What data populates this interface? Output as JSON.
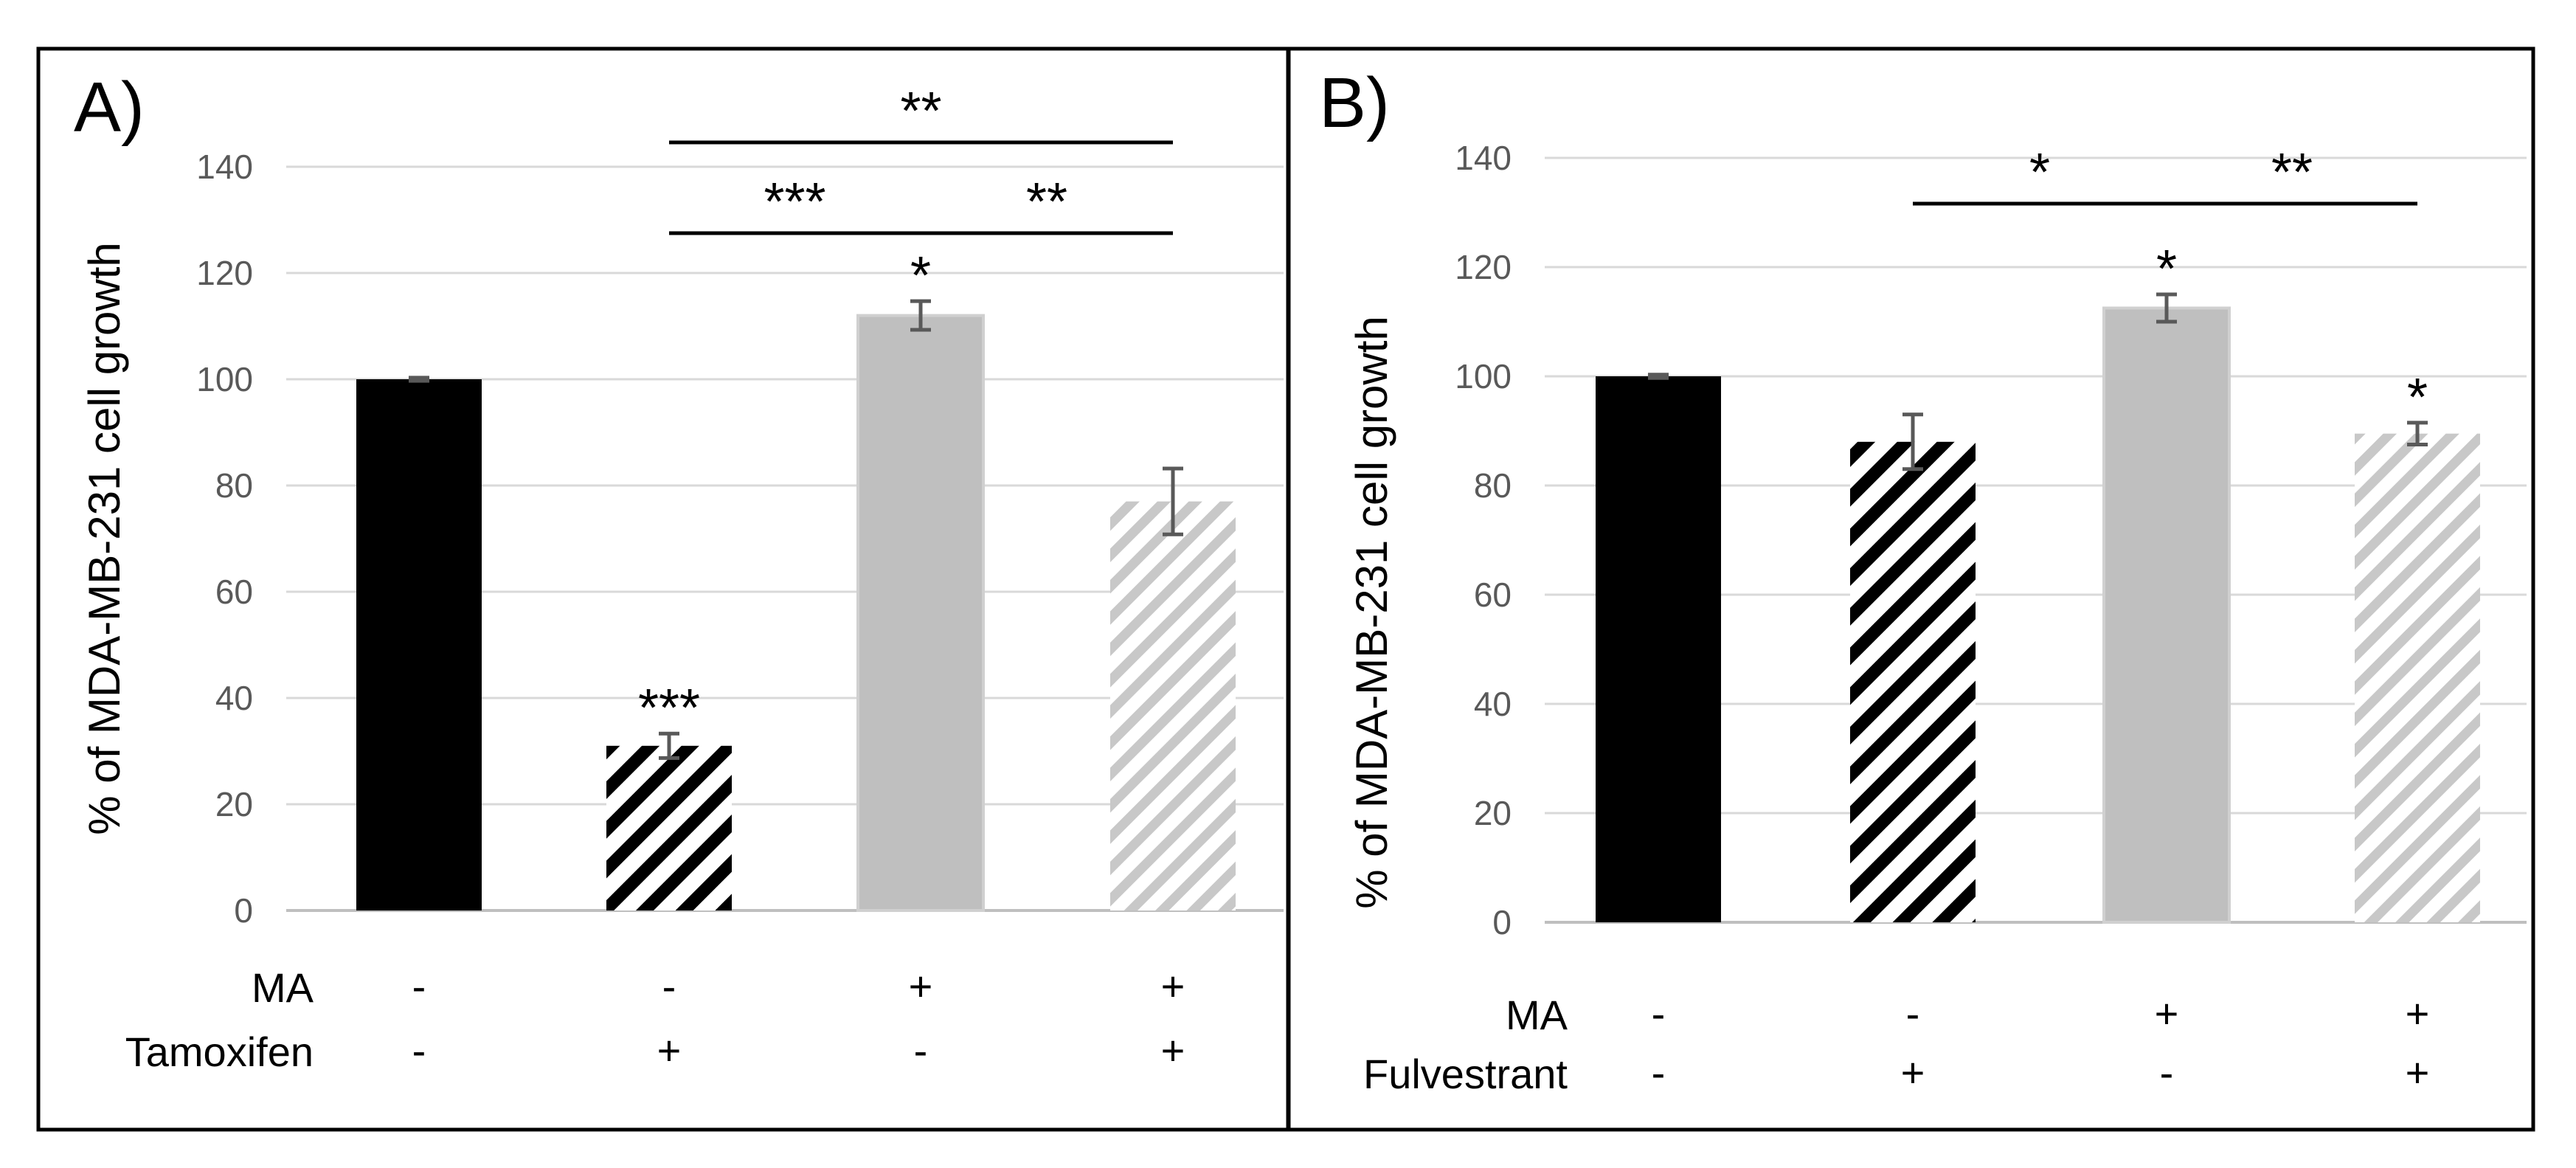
{
  "chart_data": [
    {
      "type": "bar",
      "panel_label": "A)",
      "ylabel": "% of MDA-MB-231 cell growth",
      "ylim": [
        0,
        140
      ],
      "yticks": [
        0,
        20,
        40,
        60,
        80,
        100,
        120,
        140
      ],
      "grid": true,
      "values": [
        100,
        31,
        112,
        77
      ],
      "errors": [
        0.3,
        2.3,
        2.7,
        6.2
      ],
      "bar_styles": [
        "solid-black",
        "hatch-black",
        "solid-gray",
        "hatch-gray"
      ],
      "colors": {
        "black": "#000000",
        "gray": "#bfbfbf",
        "hatch_gray": "#c8c8c8",
        "grid": "#d9d9d9",
        "axis": "#bfbfbf",
        "error": "#595959",
        "tick_text": "#595959"
      },
      "bar_annotations": [
        "",
        "***",
        "*",
        ""
      ],
      "conditions": [
        {
          "label": "MA",
          "values": [
            "-",
            "-",
            "+",
            "+"
          ]
        },
        {
          "label": "Tamoxifen",
          "values": [
            "-",
            "+",
            "-",
            "+"
          ]
        }
      ],
      "brackets": [
        {
          "from": 1,
          "to": 3,
          "label": "**",
          "level": 2
        },
        {
          "from": 1,
          "to": 2,
          "label": "***",
          "level": 1
        },
        {
          "from": 2,
          "to": 3,
          "label": "**",
          "level": 1
        }
      ]
    },
    {
      "type": "bar",
      "panel_label": "B)",
      "ylabel": "% of MDA-MB-231 cell growth",
      "ylim": [
        0,
        140
      ],
      "yticks": [
        0,
        20,
        40,
        60,
        80,
        100,
        120,
        140
      ],
      "grid": true,
      "values": [
        100,
        88,
        112.5,
        89.5
      ],
      "errors": [
        0.3,
        5,
        2.5,
        2
      ],
      "bar_styles": [
        "solid-black",
        "hatch-black",
        "solid-gray",
        "hatch-gray"
      ],
      "colors": {
        "black": "#000000",
        "gray": "#bfbfbf",
        "hatch_gray": "#c8c8c8",
        "grid": "#d9d9d9",
        "axis": "#bfbfbf",
        "error": "#595959",
        "tick_text": "#595959"
      },
      "bar_annotations": [
        "",
        "",
        "*",
        "*"
      ],
      "conditions": [
        {
          "label": "MA",
          "values": [
            "-",
            "-",
            "+",
            "+"
          ]
        },
        {
          "label": "Fulvestrant",
          "values": [
            "-",
            "+",
            "-",
            "+"
          ]
        }
      ],
      "brackets": [
        {
          "from": 1,
          "to": 2,
          "label": "*",
          "level": 1
        },
        {
          "from": 2,
          "to": 3,
          "label": "**",
          "level": 1
        }
      ]
    }
  ]
}
